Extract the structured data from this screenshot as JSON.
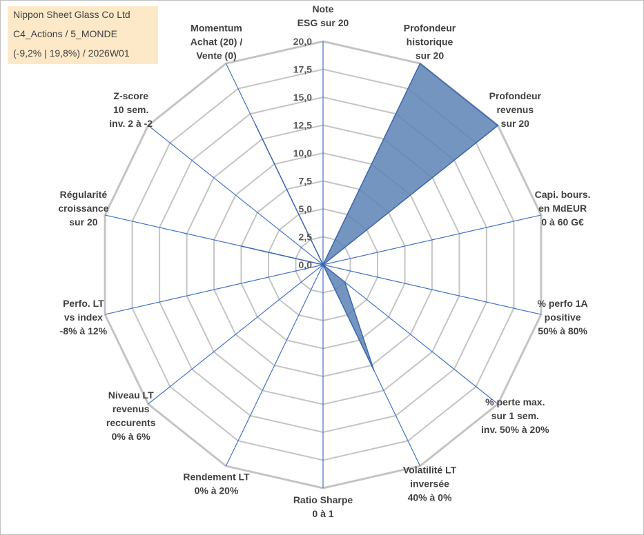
{
  "title_box": {
    "line1": "Nippon Sheet Glass Co Ltd",
    "line2": "C4_Actions / 5_MONDE",
    "line3": "(-9,2% | 19,8%) / 2026W01",
    "background": "#fde9c8"
  },
  "chart_data": {
    "type": "radar",
    "rmin": 0,
    "rmax": 20,
    "rings": 8,
    "tick_labels": [
      "0,0",
      "2,5",
      "5,0",
      "7,5",
      "10,0",
      "12,5",
      "15,0",
      "17,5",
      "20,0"
    ],
    "axes": [
      {
        "label": "Note\nESG sur 20"
      },
      {
        "label": "Profondeur\nhistorique\nsur 20"
      },
      {
        "label": "Profondeur\nrevenus\nsur 20"
      },
      {
        "label": "Capi. bours.\nen MdEUR\n0 à 60 G€"
      },
      {
        "label": "% perfo 1A\npositive\n50% à 80%"
      },
      {
        "label": "% perte max.\nsur 1 sem.\ninv. 50% à 20%"
      },
      {
        "label": "Volatilité LT\ninversée\n40% à 0%"
      },
      {
        "label": "Ratio Sharpe\n0 à 1"
      },
      {
        "label": "Rendement LT\n0% à 20%"
      },
      {
        "label": "Niveau LT\nrevenus\nreccurents\n0% à 6%"
      },
      {
        "label": "Perfo. LT\nvs index\n-8% à 12%"
      },
      {
        "label": "Régularité\ncroissance\nsur 20"
      },
      {
        "label": "Z-score\n10 sem.\ninv. 2 à -2"
      },
      {
        "label": "Momentum\nAchat (20) /\nVente (0)"
      }
    ],
    "series": [
      {
        "values": [
          0,
          20,
          20,
          0,
          0,
          2.5,
          10.5,
          0,
          0,
          0,
          0,
          7.5,
          0,
          14
        ],
        "fill": "#5b83b5",
        "stroke": "#3d66b0"
      }
    ],
    "grid_color": "#c4c4c4",
    "axis_color": "#4472c4"
  }
}
